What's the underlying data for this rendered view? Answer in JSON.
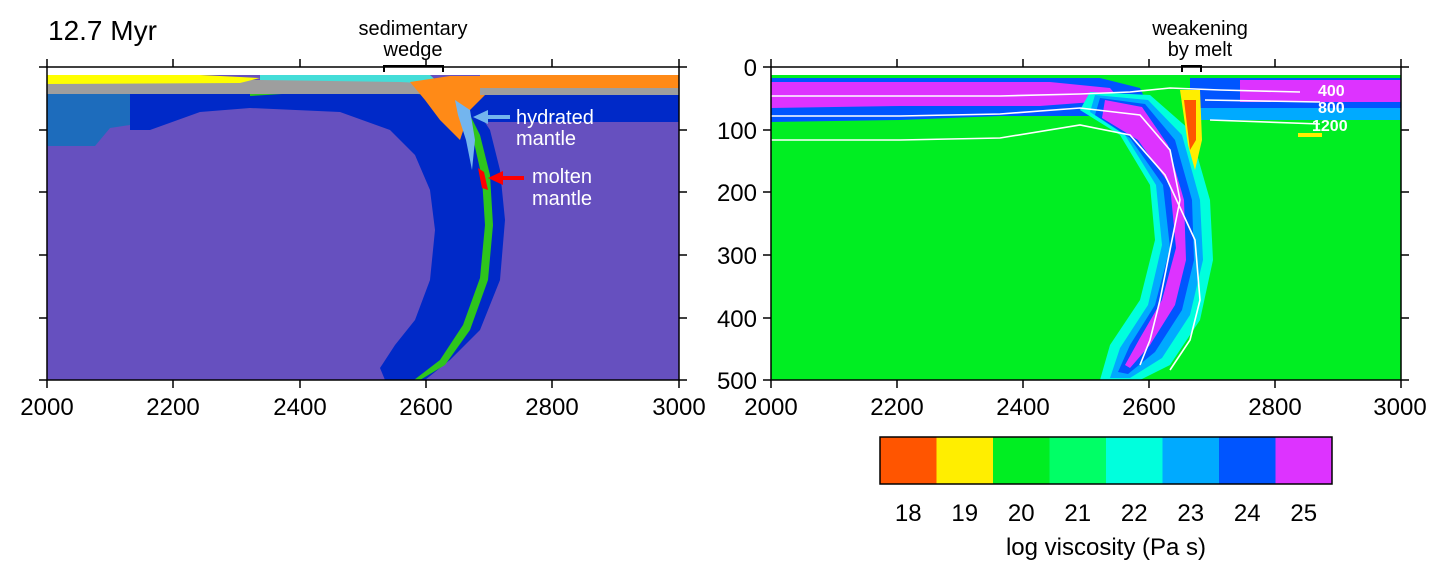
{
  "time_label": "12.7 Myr",
  "left_panel": {
    "x_ticks": [
      "2000",
      "2200",
      "2400",
      "2600",
      "2800",
      "3000"
    ],
    "annotations": {
      "sedimentary_wedge": [
        "sedimentary",
        "wedge"
      ],
      "hydrated_mantle": [
        "hydrated",
        "mantle"
      ],
      "molten_mantle": [
        "molten",
        "mantle"
      ]
    },
    "colors": {
      "mantle": "#6650bf",
      "lithosphere": "#0029c8",
      "old_lithosphere": "#1d6cbc",
      "sediment": "#ff8a17",
      "upper_crust": "#ffff00",
      "lower_crust": "#9e9e9e",
      "hydrated": "#73b5ee",
      "molten": "#ff0000",
      "oceanic_crust": "#2ec51c",
      "water": "#44ddd8"
    }
  },
  "right_panel": {
    "y_ticks": [
      "0",
      "100",
      "200",
      "300",
      "400",
      "500"
    ],
    "x_ticks": [
      "2000",
      "2200",
      "2400",
      "2600",
      "2800",
      "3000"
    ],
    "annotations": {
      "weakening_by_melt": [
        "weakening",
        "by melt"
      ]
    },
    "contour_labels": [
      "400",
      "800",
      "1200"
    ]
  },
  "colorbar": {
    "ticks": [
      "18",
      "19",
      "20",
      "21",
      "22",
      "23",
      "24",
      "25"
    ],
    "colors": [
      "#ff5500",
      "#ffee00",
      "#00ee22",
      "#00ff66",
      "#00ffdd",
      "#00aaff",
      "#0055ff",
      "#dd33ff"
    ],
    "label": "log viscosity (Pa s)"
  }
}
